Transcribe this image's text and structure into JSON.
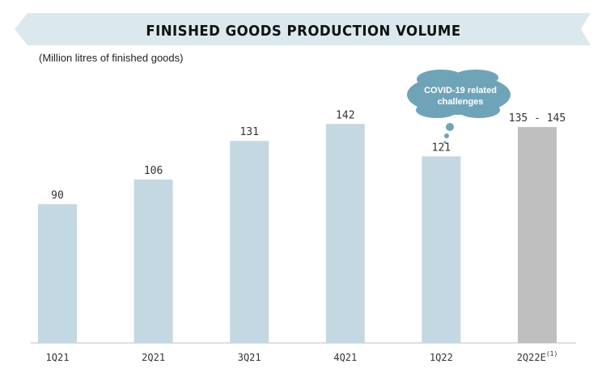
{
  "header": {
    "title": "FINISHED GOODS PRODUCTION VOLUME",
    "subtitle": "(Million litres of finished goods)"
  },
  "callout": {
    "text": "COVID-19 related challenges"
  },
  "colors": {
    "banner": "#dbe9ef",
    "bar": "#c3d8e2",
    "forecast_bar": "#bfbfbf",
    "callout": "#6fa4b8"
  },
  "chart_data": {
    "type": "bar",
    "title": "FINISHED GOODS PRODUCTION VOLUME",
    "subtitle": "(Million litres of finished goods)",
    "categories": [
      "1Q21",
      "2Q21",
      "3Q21",
      "4Q21",
      "1Q22",
      "2Q22E"
    ],
    "category_superscripts": [
      "",
      "",
      "",
      "",
      "",
      "(1)"
    ],
    "values": [
      90,
      106,
      131,
      142,
      121,
      140
    ],
    "value_ranges": [
      null,
      null,
      null,
      null,
      null,
      [
        135,
        145
      ]
    ],
    "data_labels": [
      "90",
      "106",
      "131",
      "142",
      "121",
      "135 - 145"
    ],
    "ylim": [
      0,
      150
    ],
    "grid": false,
    "xlabel": "",
    "ylabel": ""
  }
}
